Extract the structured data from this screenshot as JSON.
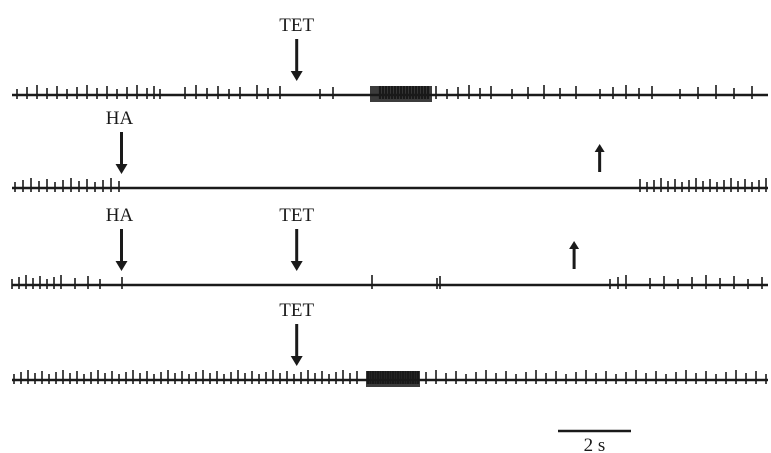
{
  "figure": {
    "traces": [
      {
        "id": "trace-1",
        "markers": [
          {
            "label": "TET",
            "direction": "down",
            "time_s": 7.8
          }
        ]
      },
      {
        "id": "trace-2",
        "markers": [
          {
            "label": "HA",
            "direction": "down",
            "time_s": 3.0
          },
          {
            "label": "",
            "direction": "up",
            "time_s": 16.1
          }
        ]
      },
      {
        "id": "trace-3",
        "markers": [
          {
            "label": "HA",
            "direction": "down",
            "time_s": 3.0
          },
          {
            "label": "TET",
            "direction": "down",
            "time_s": 7.8
          },
          {
            "label": "",
            "direction": "up",
            "time_s": 15.4
          }
        ]
      },
      {
        "id": "trace-4",
        "markers": [
          {
            "label": "TET",
            "direction": "down",
            "time_s": 7.8
          }
        ]
      }
    ],
    "scale_bar": {
      "label": "2 s",
      "duration_s": 2
    }
  },
  "colors": {
    "ink": "#1a1a1a",
    "background": "#ffffff"
  }
}
